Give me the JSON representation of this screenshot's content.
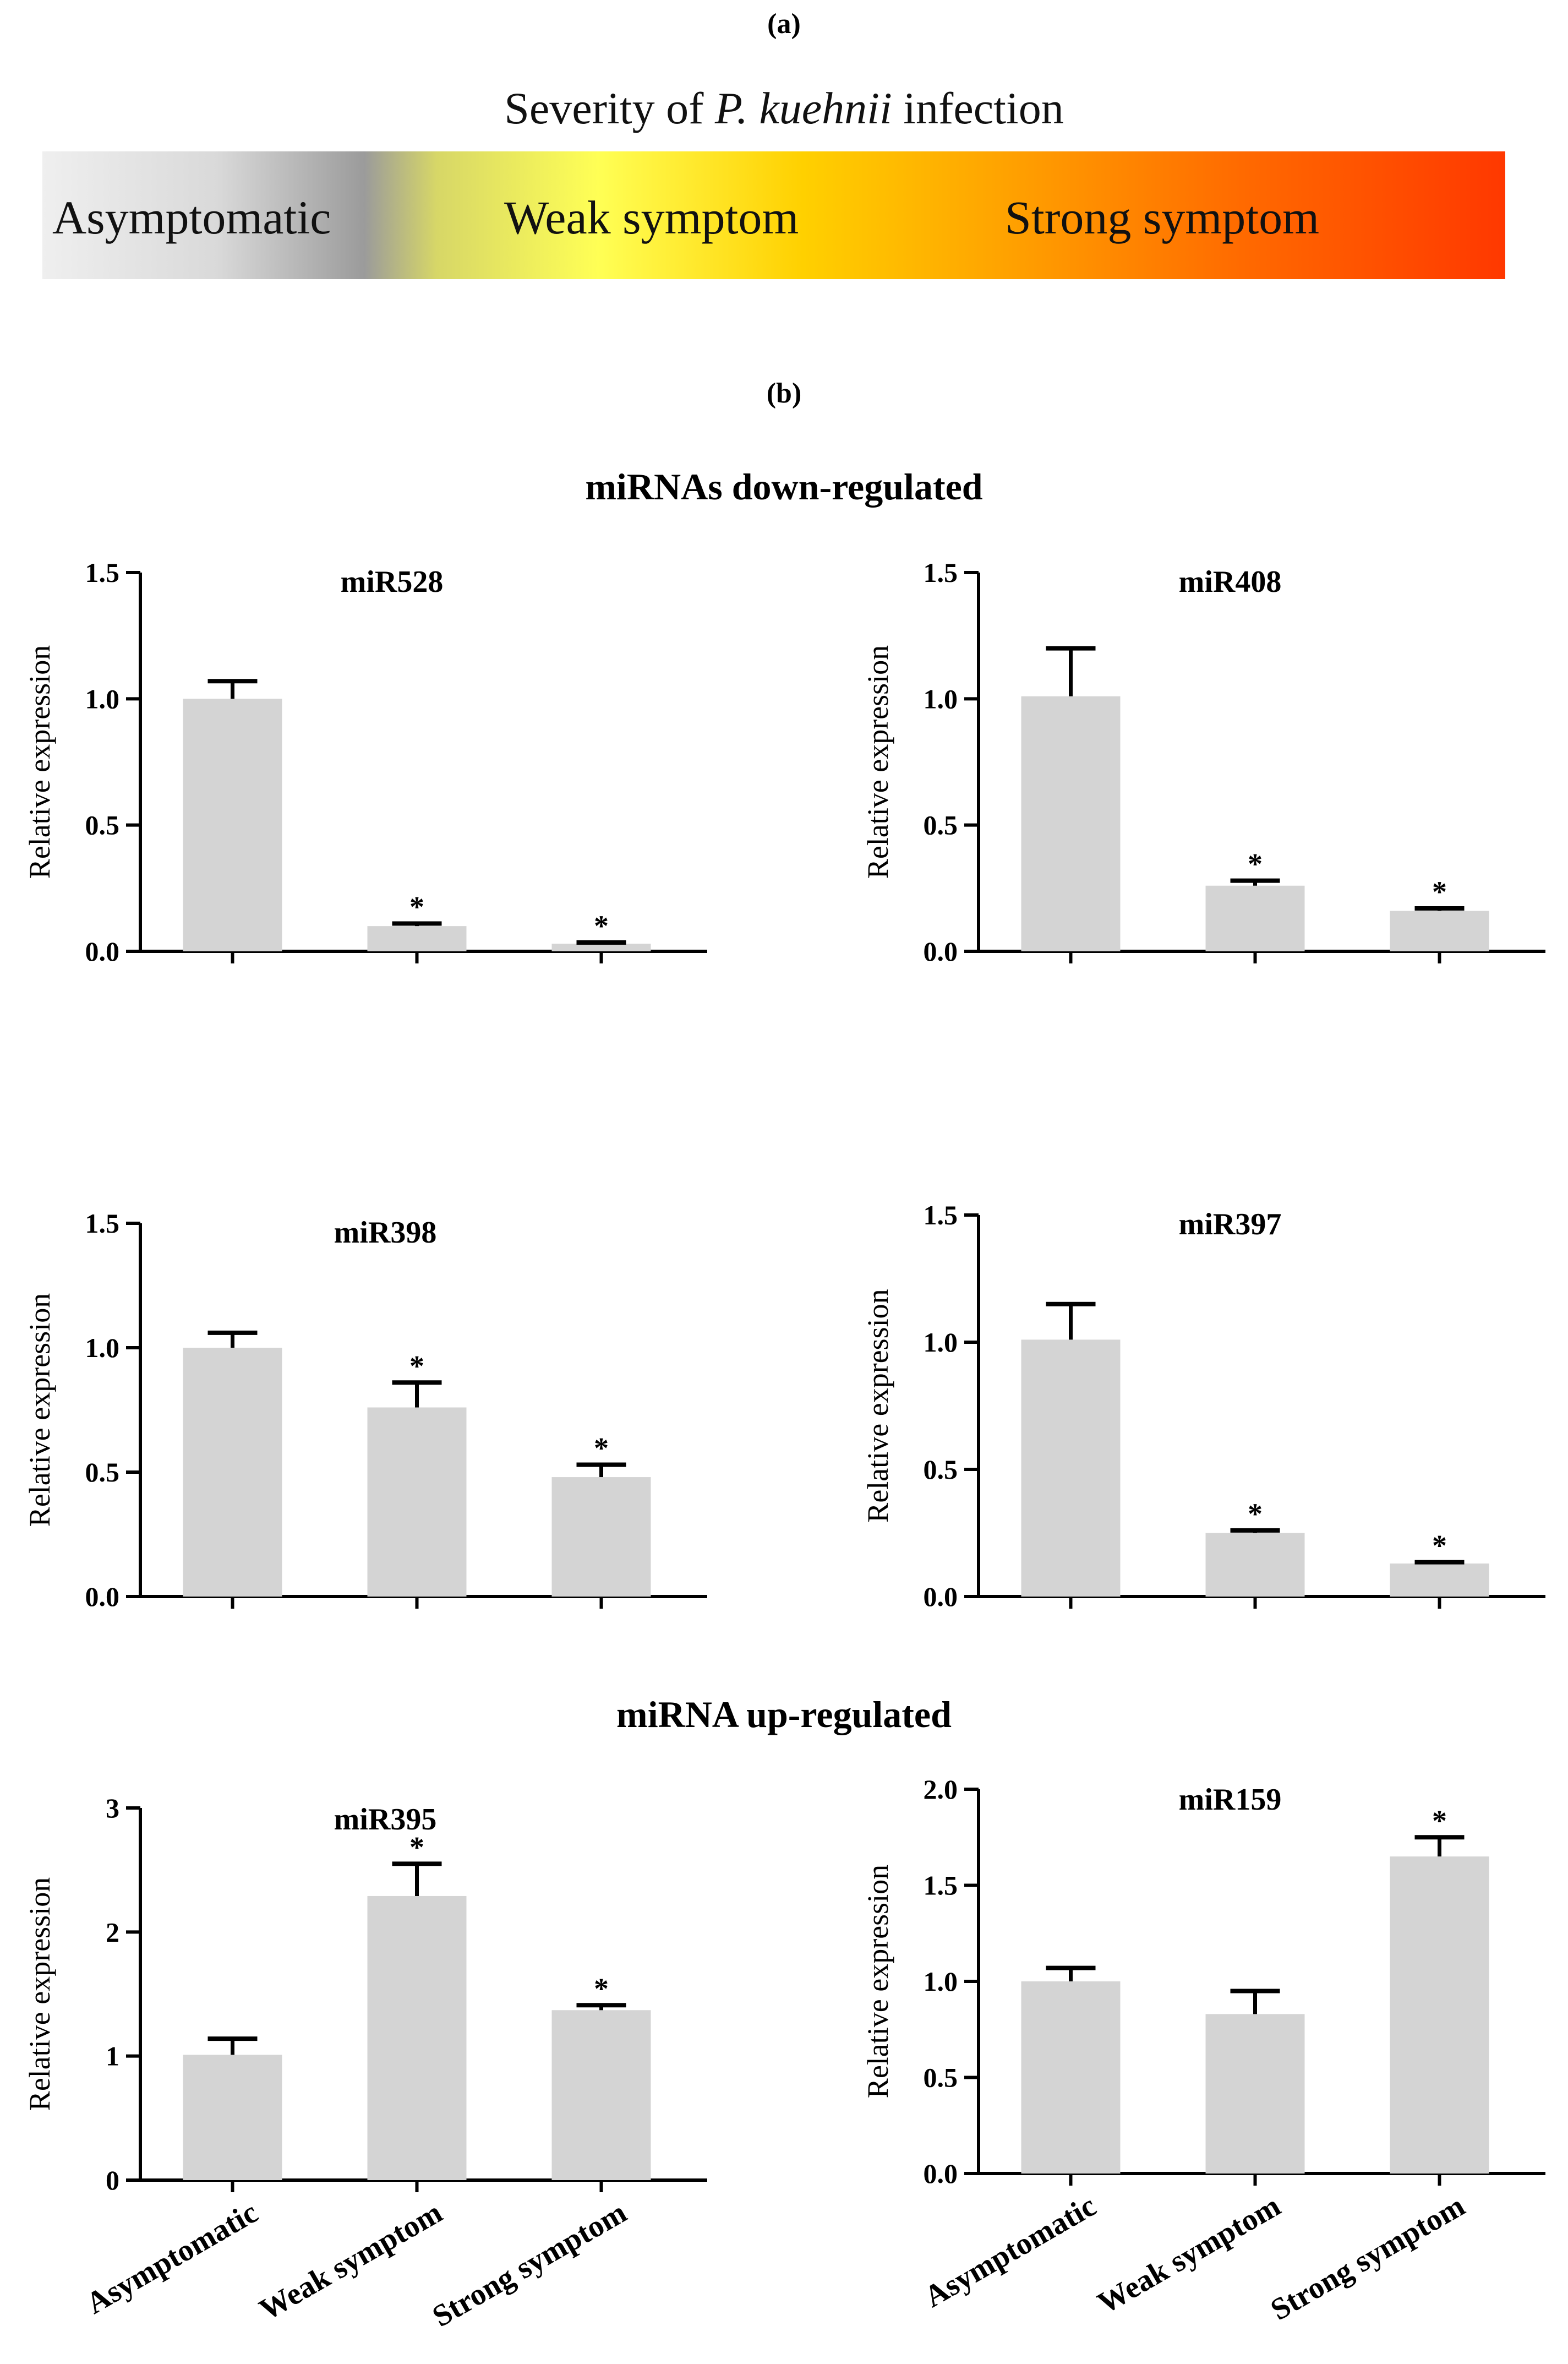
{
  "panel_a_label": "(a)",
  "severity_title_prefix": "Severity of ",
  "severity_title_species": "P. kuehnii",
  "severity_title_suffix": " infection",
  "severity_levels": [
    "Asymptomatic",
    "Weak symptom",
    "Strong symptom"
  ],
  "severity_colors": [
    "#efefef",
    "#ffff55",
    "#ff3800"
  ],
  "panel_b_label": "(b)",
  "section_down": "miRNAs down-regulated",
  "section_up": "miRNA up-regulated",
  "bar_color": "#d4d4d4",
  "chart_data": [
    {
      "type": "bar",
      "title": "miR528",
      "ylabel": "Relative expression",
      "categories": [
        "Asymptomatic",
        "Weak symptom",
        "Strong symptom"
      ],
      "values": [
        1.0,
        0.1,
        0.03
      ],
      "errors": [
        0.07,
        0.01,
        0.005
      ],
      "significant": [
        false,
        true,
        true
      ],
      "ylim": [
        0,
        1.5
      ],
      "yticks": [
        "0.0",
        "0.5",
        "1.0",
        "1.5"
      ],
      "show_xlabels": false
    },
    {
      "type": "bar",
      "title": "miR408",
      "ylabel": "Relative expression",
      "categories": [
        "Asymptomatic",
        "Weak symptom",
        "Strong symptom"
      ],
      "values": [
        1.01,
        0.26,
        0.16
      ],
      "errors": [
        0.19,
        0.02,
        0.01
      ],
      "significant": [
        false,
        true,
        true
      ],
      "ylim": [
        0,
        1.5
      ],
      "yticks": [
        "0.0",
        "0.5",
        "1.0",
        "1.5"
      ],
      "show_xlabels": false
    },
    {
      "type": "bar",
      "title": "miR398",
      "ylabel": "Relative expression",
      "categories": [
        "Asymptomatic",
        "Weak symptom",
        "Strong symptom"
      ],
      "values": [
        1.0,
        0.76,
        0.48
      ],
      "errors": [
        0.06,
        0.1,
        0.05
      ],
      "significant": [
        false,
        true,
        true
      ],
      "ylim": [
        0,
        1.5
      ],
      "yticks": [
        "0.0",
        "0.5",
        "1.0",
        "1.5"
      ],
      "show_xlabels": false
    },
    {
      "type": "bar",
      "title": "miR397",
      "ylabel": "Relative expression",
      "categories": [
        "Asymptomatic",
        "Weak symptom",
        "Strong symptom"
      ],
      "values": [
        1.01,
        0.25,
        0.13
      ],
      "errors": [
        0.14,
        0.01,
        0.005
      ],
      "significant": [
        false,
        true,
        true
      ],
      "ylim": [
        0,
        1.5
      ],
      "yticks": [
        "0.0",
        "0.5",
        "1.0",
        "1.5"
      ],
      "show_xlabels": false
    },
    {
      "type": "bar",
      "title": "miR395",
      "ylabel": "Relative expression",
      "categories": [
        "Asymptomatic",
        "Weak symptom",
        "Strong symptom"
      ],
      "values": [
        1.01,
        2.29,
        1.37
      ],
      "errors": [
        0.13,
        0.26,
        0.04
      ],
      "significant": [
        false,
        true,
        true
      ],
      "ylim": [
        0,
        3
      ],
      "yticks": [
        "0",
        "1",
        "2",
        "3"
      ],
      "show_xlabels": true
    },
    {
      "type": "bar",
      "title": "miR159",
      "ylabel": "Relative expression",
      "categories": [
        "Asymptomatic",
        "Weak symptom",
        "Strong symptom"
      ],
      "values": [
        1.0,
        0.83,
        1.65
      ],
      "errors": [
        0.07,
        0.12,
        0.1
      ],
      "significant": [
        false,
        false,
        true
      ],
      "ylim": [
        0,
        2.0
      ],
      "yticks": [
        "0.0",
        "0.5",
        "1.0",
        "1.5",
        "2.0"
      ],
      "show_xlabels": true
    }
  ]
}
